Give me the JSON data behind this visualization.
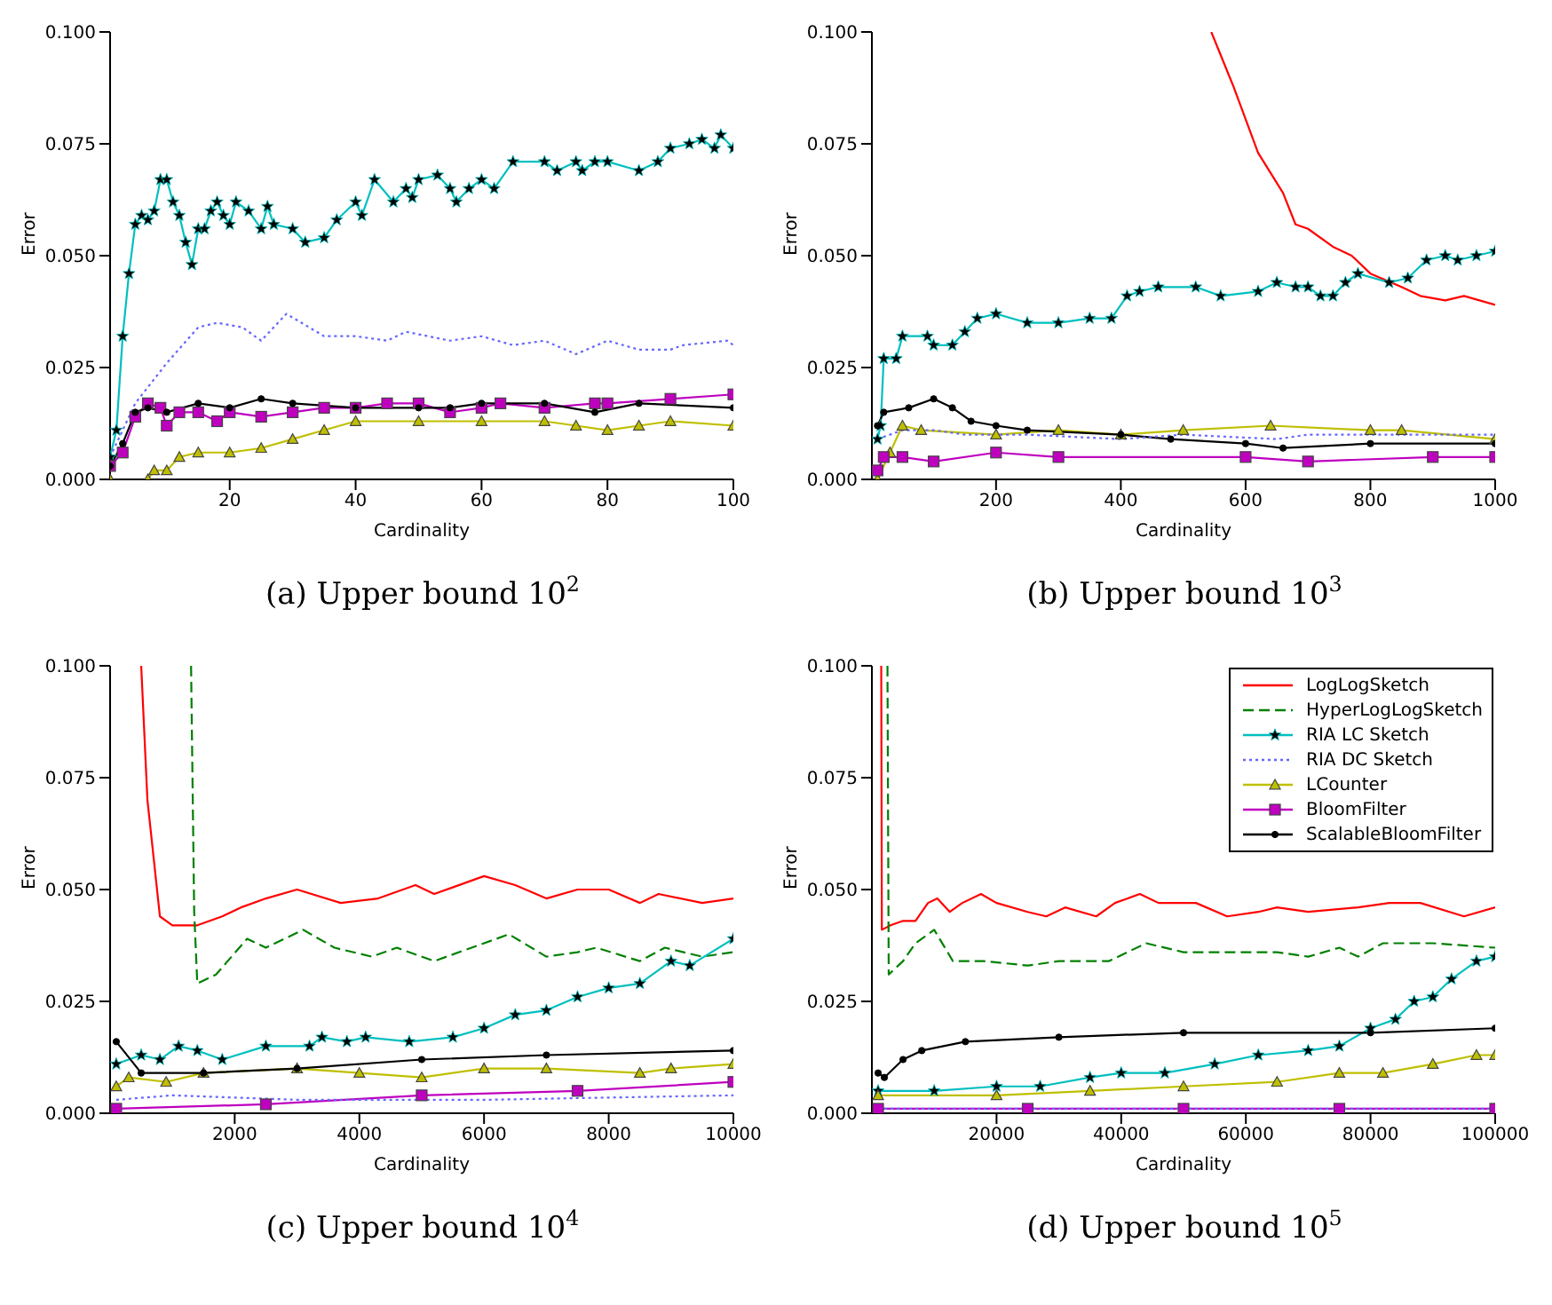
{
  "chart_data": [
    {
      "type": "line",
      "title": "(a) Upper bound 10$^{2}$",
      "xlabel": "Cardinality",
      "ylabel": "Error",
      "xlim": [
        1,
        100
      ],
      "xticks": [
        20,
        40,
        60,
        80,
        100
      ],
      "ylim": [
        0,
        0.1
      ],
      "yticks": [
        {
          "value": 0,
          "label": "0.000"
        },
        {
          "value": 0.025,
          "label": "0.025"
        },
        {
          "value": 0.05,
          "label": "0.050"
        },
        {
          "value": 0.075,
          "label": "0.075"
        },
        {
          "value": 0.1,
          "label": "0.100"
        }
      ],
      "series": [
        {
          "color": "#00bfbf",
          "marker": "star",
          "line_style": "solid",
          "x": [
            1,
            2,
            3,
            4,
            5,
            6,
            7,
            8,
            9,
            10,
            11,
            12,
            13,
            14,
            15,
            16,
            17,
            18,
            19,
            20,
            21,
            23,
            25,
            26,
            27,
            30,
            32,
            35,
            37,
            40,
            41,
            43,
            46,
            48,
            49,
            50,
            53,
            55,
            56,
            58,
            60,
            62,
            65,
            70,
            72,
            75,
            76,
            78,
            80,
            85,
            88,
            90,
            93,
            95,
            97,
            98,
            100
          ],
          "values": [
            0.005,
            0.011,
            0.032,
            0.046,
            0.057,
            0.059,
            0.058,
            0.06,
            0.067,
            0.067,
            0.062,
            0.059,
            0.053,
            0.048,
            0.056,
            0.056,
            0.06,
            0.062,
            0.059,
            0.057,
            0.062,
            0.06,
            0.056,
            0.061,
            0.057,
            0.056,
            0.053,
            0.054,
            0.058,
            0.062,
            0.059,
            0.067,
            0.062,
            0.065,
            0.063,
            0.067,
            0.068,
            0.065,
            0.062,
            0.065,
            0.067,
            0.065,
            0.071,
            0.071,
            0.069,
            0.071,
            0.069,
            0.071,
            0.071,
            0.069,
            0.071,
            0.074,
            0.075,
            0.076,
            0.074,
            0.077,
            0.074
          ]
        },
        {
          "color": "#6666ff",
          "marker": "none",
          "line_style": "dotted",
          "x": [
            1,
            5,
            10,
            15,
            18,
            22,
            25,
            29,
            35,
            40,
            45,
            48,
            55,
            60,
            65,
            70,
            75,
            80,
            85,
            90,
            92,
            99,
            100
          ],
          "values": [
            0.005,
            0.017,
            0.026,
            0.034,
            0.035,
            0.034,
            0.031,
            0.037,
            0.032,
            0.032,
            0.031,
            0.033,
            0.031,
            0.032,
            0.03,
            0.031,
            0.028,
            0.031,
            0.029,
            0.029,
            0.03,
            0.031,
            0.03
          ]
        },
        {
          "color": "#bfbf00",
          "marker": "triangle",
          "line_style": "solid",
          "x": [
            1,
            7,
            8,
            10,
            12,
            15,
            20,
            25,
            30,
            35,
            40,
            50,
            60,
            70,
            75,
            80,
            85,
            90,
            100
          ],
          "values": [
            0,
            0,
            0.002,
            0.002,
            0.005,
            0.006,
            0.006,
            0.007,
            0.009,
            0.011,
            0.013,
            0.013,
            0.013,
            0.013,
            0.012,
            0.011,
            0.012,
            0.013,
            0.012
          ]
        },
        {
          "color": "#bf00bf",
          "marker": "square",
          "line_style": "solid",
          "x": [
            1,
            3,
            5,
            7,
            9,
            10,
            12,
            15,
            18,
            20,
            25,
            30,
            35,
            40,
            45,
            50,
            55,
            60,
            63,
            70,
            78,
            80,
            90,
            100
          ],
          "values": [
            0.003,
            0.006,
            0.014,
            0.017,
            0.016,
            0.012,
            0.015,
            0.015,
            0.013,
            0.015,
            0.014,
            0.015,
            0.016,
            0.016,
            0.017,
            0.017,
            0.015,
            0.016,
            0.017,
            0.016,
            0.017,
            0.017,
            0.018,
            0.019
          ]
        },
        {
          "color": "#000000",
          "marker": "circle",
          "line_style": "solid",
          "x": [
            1,
            3,
            5,
            7,
            10,
            15,
            20,
            25,
            30,
            40,
            50,
            55,
            60,
            70,
            78,
            85,
            100
          ],
          "values": [
            0.003,
            0.008,
            0.015,
            0.016,
            0.015,
            0.017,
            0.016,
            0.018,
            0.017,
            0.016,
            0.016,
            0.016,
            0.017,
            0.017,
            0.015,
            0.017,
            0.016
          ]
        }
      ]
    },
    {
      "type": "line",
      "title": "(b) Upper bound 10$^{3}$",
      "xlabel": "Cardinality",
      "ylabel": "Error",
      "xlim": [
        1,
        1000
      ],
      "xticks": [
        200,
        400,
        600,
        800,
        1000
      ],
      "ylim": [
        0,
        0.1
      ],
      "yticks": [
        {
          "value": 0,
          "label": "0.000"
        },
        {
          "value": 0.025,
          "label": "0.025"
        },
        {
          "value": 0.05,
          "label": "0.050"
        },
        {
          "value": 0.075,
          "label": "0.075"
        },
        {
          "value": 0.1,
          "label": "0.100"
        }
      ],
      "series": [
        {
          "color": "#ff0000",
          "marker": "none",
          "line_style": "solid",
          "x": [
            545,
            580,
            620,
            660,
            680,
            700,
            740,
            770,
            800,
            850,
            880,
            920,
            950,
            1000
          ],
          "values": [
            0.1,
            0.088,
            0.073,
            0.064,
            0.057,
            0.056,
            0.052,
            0.05,
            0.046,
            0.043,
            0.041,
            0.04,
            0.041,
            0.039
          ]
        },
        {
          "color": "#00bfbf",
          "marker": "star",
          "line_style": "solid",
          "x": [
            10,
            15,
            20,
            40,
            50,
            90,
            100,
            130,
            150,
            170,
            200,
            250,
            300,
            350,
            385,
            410,
            430,
            460,
            520,
            560,
            620,
            650,
            680,
            700,
            720,
            740,
            760,
            780,
            830,
            860,
            890,
            920,
            940,
            970,
            1000
          ],
          "values": [
            0.009,
            0.012,
            0.027,
            0.027,
            0.032,
            0.032,
            0.03,
            0.03,
            0.033,
            0.036,
            0.037,
            0.035,
            0.035,
            0.036,
            0.036,
            0.041,
            0.042,
            0.043,
            0.043,
            0.041,
            0.042,
            0.044,
            0.043,
            0.043,
            0.041,
            0.041,
            0.044,
            0.046,
            0.044,
            0.045,
            0.049,
            0.05,
            0.049,
            0.05,
            0.051
          ]
        },
        {
          "color": "#6666ff",
          "marker": "none",
          "line_style": "dotted",
          "x": [
            10,
            50,
            100,
            150,
            250,
            400,
            500,
            650,
            700,
            800,
            1000
          ],
          "values": [
            0.009,
            0.011,
            0.011,
            0.01,
            0.01,
            0.009,
            0.01,
            0.009,
            0.01,
            0.01,
            0.01
          ]
        },
        {
          "color": "#bfbf00",
          "marker": "triangle",
          "line_style": "solid",
          "x": [
            10,
            30,
            50,
            80,
            200,
            300,
            400,
            500,
            640,
            800,
            850,
            1000
          ],
          "values": [
            0,
            0.006,
            0.012,
            0.011,
            0.01,
            0.011,
            0.01,
            0.011,
            0.012,
            0.011,
            0.011,
            0.009
          ]
        },
        {
          "color": "#bf00bf",
          "marker": "square",
          "line_style": "solid",
          "x": [
            10,
            20,
            50,
            100,
            200,
            300,
            600,
            700,
            900,
            1000
          ],
          "values": [
            0.002,
            0.005,
            0.005,
            0.004,
            0.006,
            0.005,
            0.005,
            0.004,
            0.005,
            0.005
          ]
        },
        {
          "color": "#000000",
          "marker": "circle",
          "line_style": "solid",
          "x": [
            10,
            20,
            60,
            100,
            130,
            160,
            200,
            250,
            400,
            480,
            600,
            660,
            800,
            1000
          ],
          "values": [
            0.012,
            0.015,
            0.016,
            0.018,
            0.016,
            0.013,
            0.012,
            0.011,
            0.01,
            0.009,
            0.008,
            0.007,
            0.008,
            0.008
          ]
        }
      ]
    },
    {
      "type": "line",
      "title": "(c) Upper bound 10$^{4}$",
      "xlabel": "Cardinality",
      "ylabel": "Error",
      "xlim": [
        1,
        10000
      ],
      "xticks": [
        2000,
        4000,
        6000,
        8000,
        10000
      ],
      "ylim": [
        0,
        0.1
      ],
      "yticks": [
        {
          "value": 0,
          "label": "0.000"
        },
        {
          "value": 0.025,
          "label": "0.025"
        },
        {
          "value": 0.05,
          "label": "0.050"
        },
        {
          "value": 0.075,
          "label": "0.075"
        },
        {
          "value": 0.1,
          "label": "0.100"
        }
      ],
      "series": [
        {
          "color": "#ff0000",
          "marker": "none",
          "line_style": "solid",
          "x": [
            500,
            600,
            800,
            1000,
            1400,
            1800,
            2100,
            2500,
            3000,
            3700,
            4300,
            4900,
            5200,
            6000,
            6500,
            7000,
            7500,
            8000,
            8500,
            8800,
            9500,
            10000
          ],
          "values": [
            0.1,
            0.07,
            0.044,
            0.042,
            0.042,
            0.044,
            0.046,
            0.048,
            0.05,
            0.047,
            0.048,
            0.051,
            0.049,
            0.053,
            0.051,
            0.048,
            0.05,
            0.05,
            0.047,
            0.049,
            0.047,
            0.048
          ]
        },
        {
          "color": "#008000",
          "marker": "none",
          "line_style": "dashed",
          "x": [
            1300,
            1350,
            1400,
            1700,
            2200,
            2500,
            3100,
            3600,
            4200,
            4600,
            5200,
            6000,
            6400,
            7000,
            7500,
            7800,
            8500,
            8900,
            9500,
            10000
          ],
          "values": [
            0.1,
            0.045,
            0.029,
            0.031,
            0.039,
            0.037,
            0.041,
            0.037,
            0.035,
            0.037,
            0.034,
            0.038,
            0.04,
            0.035,
            0.036,
            0.037,
            0.034,
            0.037,
            0.035,
            0.036
          ]
        },
        {
          "color": "#00bfbf",
          "marker": "star",
          "line_style": "solid",
          "x": [
            100,
            500,
            800,
            1100,
            1400,
            1800,
            2500,
            3200,
            3400,
            3800,
            4100,
            4800,
            5500,
            6000,
            6500,
            7000,
            7500,
            8000,
            8500,
            9000,
            9300,
            10000
          ],
          "values": [
            0.011,
            0.013,
            0.012,
            0.015,
            0.014,
            0.012,
            0.015,
            0.015,
            0.017,
            0.016,
            0.017,
            0.016,
            0.017,
            0.019,
            0.022,
            0.023,
            0.026,
            0.028,
            0.029,
            0.034,
            0.033,
            0.039
          ]
        },
        {
          "color": "#6666ff",
          "marker": "none",
          "line_style": "dotted",
          "x": [
            100,
            1000,
            3000,
            6000,
            10000
          ],
          "values": [
            0.003,
            0.004,
            0.003,
            0.003,
            0.004
          ]
        },
        {
          "color": "#bfbf00",
          "marker": "triangle",
          "line_style": "solid",
          "x": [
            100,
            300,
            900,
            1500,
            3000,
            4000,
            5000,
            6000,
            7000,
            8500,
            9000,
            10000
          ],
          "values": [
            0.006,
            0.008,
            0.007,
            0.009,
            0.01,
            0.009,
            0.008,
            0.01,
            0.01,
            0.009,
            0.01,
            0.011
          ]
        },
        {
          "color": "#bf00bf",
          "marker": "square",
          "line_style": "solid",
          "x": [
            100,
            2500,
            5000,
            7500,
            10000
          ],
          "values": [
            0.001,
            0.002,
            0.004,
            0.005,
            0.007
          ]
        },
        {
          "color": "#000000",
          "marker": "circle",
          "line_style": "solid",
          "x": [
            100,
            500,
            1500,
            3000,
            5000,
            7000,
            10000
          ],
          "values": [
            0.016,
            0.009,
            0.009,
            0.01,
            0.012,
            0.013,
            0.014
          ]
        }
      ]
    },
    {
      "type": "line",
      "title": "(d) Upper bound 10$^{5}$",
      "xlabel": "Cardinality",
      "ylabel": "Error",
      "xlim": [
        1,
        100000
      ],
      "xticks": [
        20000,
        40000,
        60000,
        80000,
        100000
      ],
      "ylim": [
        0,
        0.1
      ],
      "yticks": [
        {
          "value": 0,
          "label": "0.000"
        },
        {
          "value": 0.025,
          "label": "0.025"
        },
        {
          "value": 0.05,
          "label": "0.050"
        },
        {
          "value": 0.075,
          "label": "0.075"
        },
        {
          "value": 0.1,
          "label": "0.100"
        }
      ],
      "legend": "top right",
      "series": [
        {
          "name": "LogLogSketch",
          "color": "#ff0000",
          "marker": "none",
          "line_style": "solid",
          "x": [
            1500,
            1600,
            3000,
            5000,
            7000,
            9000,
            10500,
            12500,
            14500,
            17500,
            20000,
            25000,
            28000,
            31000,
            36000,
            39000,
            43000,
            46000,
            52000,
            57000,
            62000,
            65000,
            70000,
            78000,
            83000,
            88000,
            95000,
            100000
          ],
          "values": [
            0.1,
            0.041,
            0.042,
            0.043,
            0.043,
            0.047,
            0.048,
            0.045,
            0.047,
            0.049,
            0.047,
            0.045,
            0.044,
            0.046,
            0.044,
            0.047,
            0.049,
            0.047,
            0.047,
            0.044,
            0.045,
            0.046,
            0.045,
            0.046,
            0.047,
            0.047,
            0.044,
            0.046
          ]
        },
        {
          "name": "HyperLogLogSketch",
          "color": "#008000",
          "marker": "none",
          "line_style": "dashed",
          "x": [
            2500,
            2700,
            5000,
            7000,
            10000,
            13000,
            18000,
            25000,
            30000,
            38000,
            44000,
            50000,
            58000,
            65000,
            70000,
            75000,
            78000,
            82000,
            90000,
            100000
          ],
          "values": [
            0.1,
            0.031,
            0.034,
            0.038,
            0.041,
            0.034,
            0.034,
            0.033,
            0.034,
            0.034,
            0.038,
            0.036,
            0.036,
            0.036,
            0.035,
            0.037,
            0.035,
            0.038,
            0.038,
            0.037
          ]
        },
        {
          "name": "RIA LC Sketch",
          "color": "#00bfbf",
          "marker": "star",
          "line_style": "solid",
          "x": [
            1000,
            10000,
            20000,
            27000,
            35000,
            40000,
            47000,
            55000,
            62000,
            70000,
            75000,
            80000,
            84000,
            87000,
            90000,
            93000,
            97000,
            100000
          ],
          "values": [
            0.005,
            0.005,
            0.006,
            0.006,
            0.008,
            0.009,
            0.009,
            0.011,
            0.013,
            0.014,
            0.015,
            0.019,
            0.021,
            0.025,
            0.026,
            0.03,
            0.034,
            0.035
          ]
        },
        {
          "name": "RIA DC Sketch",
          "color": "#6666ff",
          "marker": "none",
          "line_style": "dotted",
          "x": [
            1000,
            100000
          ],
          "values": [
            0.001,
            0.001
          ]
        },
        {
          "name": "LCounter",
          "color": "#bfbf00",
          "marker": "triangle",
          "line_style": "solid",
          "x": [
            1000,
            20000,
            35000,
            50000,
            65000,
            75000,
            82000,
            90000,
            97000,
            100000
          ],
          "values": [
            0.004,
            0.004,
            0.005,
            0.006,
            0.007,
            0.009,
            0.009,
            0.011,
            0.013,
            0.013
          ]
        },
        {
          "name": "BloomFilter",
          "color": "#bf00bf",
          "marker": "square",
          "line_style": "solid",
          "x": [
            1000,
            25000,
            50000,
            75000,
            100000
          ],
          "values": [
            0.001,
            0.001,
            0.001,
            0.001,
            0.001
          ]
        },
        {
          "name": "ScalableBloomFilter",
          "color": "#000000",
          "marker": "circle",
          "line_style": "solid",
          "x": [
            1000,
            2000,
            5000,
            8000,
            15000,
            30000,
            50000,
            80000,
            100000
          ],
          "values": [
            0.009,
            0.008,
            0.012,
            0.014,
            0.016,
            0.017,
            0.018,
            0.018,
            0.019
          ]
        }
      ]
    }
  ]
}
